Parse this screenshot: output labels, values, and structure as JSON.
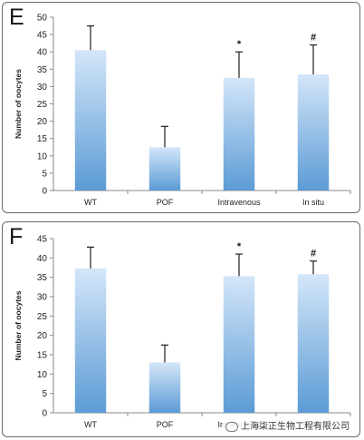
{
  "chart_data": [
    {
      "panel_label": "E",
      "type": "bar",
      "categories": [
        "WT",
        "POF",
        "Intravenous",
        "In situ"
      ],
      "values": [
        40.5,
        12.5,
        32.5,
        33.5
      ],
      "error_plus": [
        7.0,
        6.0,
        7.5,
        8.5
      ],
      "annotations": [
        "",
        "",
        "*",
        "#"
      ],
      "ylabel": "Number of oocytes",
      "ylim": [
        0,
        50
      ],
      "yticks": [
        0,
        5,
        10,
        15,
        20,
        25,
        30,
        35,
        40,
        45,
        50
      ],
      "grid": false,
      "bar_color": "#5b9bd5"
    },
    {
      "panel_label": "F",
      "type": "bar",
      "categories": [
        "WT",
        "POF",
        "Intravenous",
        "In situ"
      ],
      "values": [
        37.3,
        13.0,
        35.3,
        35.8
      ],
      "error_plus": [
        5.5,
        4.5,
        5.7,
        3.4
      ],
      "annotations": [
        "",
        "",
        "*",
        "#"
      ],
      "ylabel": "Number of oocytes",
      "ylim": [
        0,
        45
      ],
      "yticks": [
        0,
        5,
        10,
        15,
        20,
        25,
        30,
        35,
        40,
        45
      ],
      "grid": false,
      "bar_color": "#5b9bd5"
    }
  ],
  "watermark": "上海柒正生物工程有限公司"
}
